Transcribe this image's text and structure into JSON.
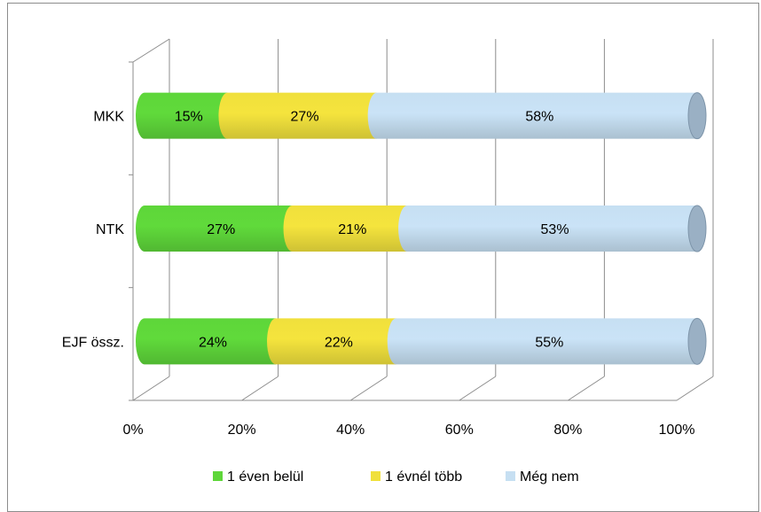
{
  "colors": {
    "background": "#ffffff",
    "gridline": "#8c8c8c",
    "series": [
      "#5ed63a",
      "#f0e03c",
      "#c6dff2"
    ]
  },
  "chart_data": {
    "type": "bar",
    "orientation": "horizontal",
    "stacked": true,
    "percent_stacked": true,
    "style_3d": "cylinder",
    "categories": [
      "MKK",
      "NTK",
      "EJF össz."
    ],
    "series": [
      {
        "name": "1 éven belül",
        "values": [
          15,
          27,
          24
        ],
        "labels": [
          "15%",
          "27%",
          "24%"
        ]
      },
      {
        "name": "1 évnél több",
        "values": [
          27,
          21,
          22
        ],
        "labels": [
          "27%",
          "21%",
          "22%"
        ]
      },
      {
        "name": "Még nem",
        "values": [
          58,
          53,
          55
        ],
        "labels": [
          "58%",
          "53%",
          "55%"
        ]
      }
    ],
    "xlim": [
      0,
      100
    ],
    "x_ticks": [
      "0%",
      "20%",
      "40%",
      "60%",
      "80%",
      "100%"
    ],
    "grid": true,
    "legend_position": "bottom",
    "title": "",
    "xlabel": "",
    "ylabel": ""
  }
}
